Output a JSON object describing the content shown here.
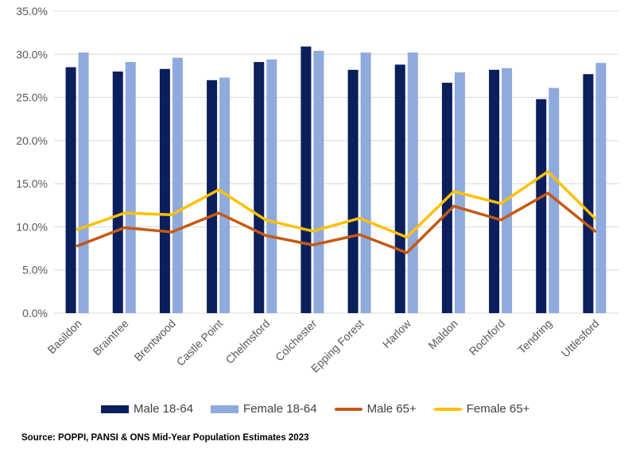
{
  "chart_data": {
    "type": "bar",
    "categories": [
      "Basildon",
      "Braintree",
      "Brentwood",
      "Castle Point",
      "Chelmsford",
      "Colchester",
      "Epping Forest",
      "Harlow",
      "Maldon",
      "Rochford",
      "Tendring",
      "Uttlesford"
    ],
    "series": [
      {
        "name": "Male 18-64",
        "type": "bar",
        "color": "#0a1f5c",
        "values": [
          28.5,
          28.0,
          28.3,
          27.0,
          29.1,
          30.9,
          28.2,
          28.8,
          26.7,
          28.2,
          24.8,
          27.7
        ]
      },
      {
        "name": "Female 18-64",
        "type": "bar",
        "color": "#8faadc",
        "values": [
          30.2,
          29.1,
          29.6,
          27.3,
          29.4,
          30.4,
          30.2,
          30.2,
          27.9,
          28.4,
          26.1,
          29.0
        ]
      },
      {
        "name": "Male 65+",
        "type": "line",
        "color": "#c55a11",
        "values": [
          7.8,
          9.9,
          9.4,
          11.6,
          9.0,
          7.9,
          9.1,
          7.0,
          12.4,
          10.8,
          13.9,
          9.5
        ]
      },
      {
        "name": "Female 65+",
        "type": "line",
        "color": "#ffc000",
        "values": [
          9.7,
          11.6,
          11.4,
          14.3,
          10.8,
          9.5,
          11.0,
          8.8,
          14.1,
          12.7,
          16.4,
          11.0
        ]
      }
    ],
    "ylim": [
      0,
      35
    ],
    "yticks": [
      0,
      5,
      10,
      15,
      20,
      25,
      30,
      35
    ],
    "ytick_labels": [
      "0.0%",
      "5.0%",
      "10.0%",
      "15.0%",
      "20.0%",
      "25.0%",
      "30.0%",
      "35.0%"
    ],
    "grid": true,
    "legend_position": "bottom"
  },
  "source_text": "Source: POPPI, PANSI & ONS Mid-Year Population Estimates 2023"
}
